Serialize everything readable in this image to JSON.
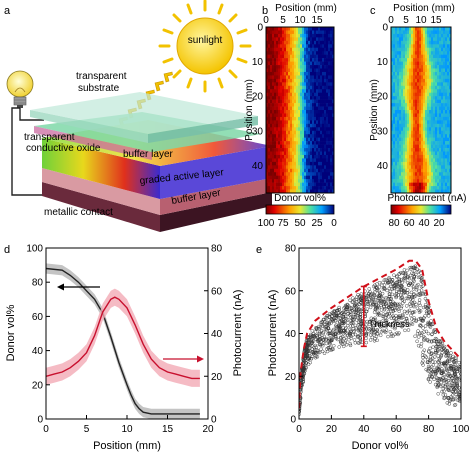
{
  "panels": {
    "a": {
      "letter": "a",
      "labels": {
        "sunlight": "sunlight",
        "substrate": "transparent substrate",
        "tco": "transparent conductive oxide",
        "buffer_top": "buffer layer",
        "active": "graded active layer",
        "buffer_bottom": "buffer layer",
        "contact": "metallic contact"
      }
    },
    "b": {
      "letter": "b",
      "xlabel": "Position (mm)",
      "ylabel": "Position (mm)",
      "xticks": [
        "0",
        "5",
        "10",
        "15"
      ],
      "yticks": [
        "0",
        "10",
        "20",
        "30",
        "40"
      ],
      "colorbar_label": "Donor vol%",
      "colorbar_ticks": [
        "100",
        "75",
        "50",
        "25",
        "0"
      ]
    },
    "c": {
      "letter": "c",
      "xlabel": "Position (mm)",
      "ylabel": "Position (mm)",
      "xticks": [
        "0",
        "5",
        "10",
        "15"
      ],
      "yticks": [
        "0",
        "10",
        "20",
        "30",
        "40"
      ],
      "colorbar_label": "Photocurrent (nA)",
      "colorbar_ticks": [
        "80",
        "60",
        "40",
        "20"
      ]
    },
    "d": {
      "letter": "d"
    },
    "e": {
      "letter": "e",
      "annotation": "Thickness"
    }
  },
  "colors": {
    "donor": "#222222",
    "donor_band": "#b5b5b5",
    "photocurrent": "#c8102e",
    "photocurrent_band": "#f2aab5",
    "scatter": "#333333",
    "envelope": "#d0101a"
  },
  "chart_data": [
    {
      "type": "heatmap",
      "panel": "b",
      "title": "",
      "xlabel": "Position (mm)",
      "ylabel": "Position (mm)",
      "xlim": [
        0,
        20
      ],
      "ylim": [
        48,
        0
      ],
      "colorbar": {
        "label": "Donor vol%",
        "range": [
          100,
          0
        ],
        "ticks": [
          100,
          75,
          50,
          25,
          0
        ]
      },
      "columns_x": [
        0,
        2,
        4,
        6,
        8,
        10,
        11,
        12,
        14,
        16,
        18,
        20
      ],
      "column_values": [
        100,
        98,
        92,
        80,
        60,
        40,
        25,
        8,
        2,
        0,
        0,
        0
      ]
    },
    {
      "type": "heatmap",
      "panel": "c",
      "title": "",
      "xlabel": "Position (mm)",
      "ylabel": "Position (mm)",
      "xlim": [
        0,
        20
      ],
      "ylim": [
        48,
        0
      ],
      "colorbar": {
        "label": "Photocurrent (nA)",
        "range": [
          80,
          0
        ],
        "ticks": [
          80,
          60,
          40,
          20
        ]
      },
      "rows_y": [
        0,
        5,
        10,
        15,
        20,
        25,
        30,
        35,
        40,
        45,
        48
      ],
      "peak_x": [
        9,
        9,
        9,
        9,
        8.5,
        8.5,
        8.5,
        8.5,
        9,
        9,
        9
      ],
      "peak_width": [
        2,
        2.5,
        3.5,
        4.5,
        4,
        2.5,
        2.5,
        3.5,
        4.5,
        4.5,
        3
      ],
      "baseline_nA": 22,
      "peak_nA": 68
    },
    {
      "type": "line",
      "panel": "d",
      "title": "",
      "xlabel": "Position (mm)",
      "ylabel": "Donor vol%",
      "y2label": "Photocurrent (nA)",
      "xlim": [
        0,
        20
      ],
      "ylim": [
        0,
        100
      ],
      "y2lim": [
        0,
        80
      ],
      "xticks": [
        0,
        5,
        10,
        15,
        20
      ],
      "yticks": [
        0,
        20,
        40,
        60,
        80,
        100
      ],
      "y2ticks": [
        0,
        20,
        40,
        60,
        80
      ],
      "series": [
        {
          "axis": "left",
          "x": [
            0,
            2,
            3,
            4,
            5,
            6,
            7,
            8,
            9,
            10,
            10.5,
            11,
            11.5,
            12,
            13,
            14,
            15,
            16,
            17,
            18,
            19
          ],
          "y": [
            88,
            87,
            84,
            80,
            75,
            70,
            62,
            48,
            33,
            20,
            14,
            9,
            6,
            4,
            3,
            3,
            3,
            3,
            3,
            3,
            3
          ],
          "band": 3
        },
        {
          "axis": "right",
          "x": [
            0,
            1,
            2,
            3,
            4,
            5,
            6,
            7,
            8,
            8.5,
            9,
            10,
            11,
            12,
            13,
            14,
            15,
            16,
            17,
            18,
            19
          ],
          "y": [
            20,
            21,
            22,
            24,
            27,
            31,
            39,
            50,
            56,
            57,
            56,
            52,
            44,
            35,
            28,
            24,
            22,
            21,
            20,
            19,
            19
          ],
          "band": 4
        }
      ]
    },
    {
      "type": "scatter",
      "panel": "e",
      "title": "",
      "xlabel": "Donor vol%",
      "ylabel": "Photocurrent (nA)",
      "xlim": [
        0,
        100
      ],
      "ylim": [
        0,
        80
      ],
      "xticks": [
        0,
        20,
        40,
        60,
        80,
        100
      ],
      "yticks": [
        0,
        20,
        40,
        60,
        80
      ],
      "envelope": {
        "x": [
          0,
          1,
          3,
          5,
          10,
          20,
          30,
          40,
          50,
          60,
          68,
          72,
          76,
          80,
          85,
          90,
          95,
          100
        ],
        "y": [
          5,
          22,
          33,
          40,
          46,
          52,
          57,
          62,
          66,
          70,
          74,
          74,
          70,
          55,
          42,
          36,
          32,
          28
        ]
      },
      "lower_edge": {
        "x": [
          0,
          2,
          5,
          10,
          20,
          30,
          40,
          50,
          60,
          70,
          72,
          76,
          80,
          85,
          90,
          95,
          100
        ],
        "y": [
          2,
          15,
          25,
          28,
          31,
          33,
          35,
          37,
          39,
          42,
          38,
          26,
          18,
          12,
          8,
          6,
          6
        ]
      },
      "thickness_marker": {
        "x": 40,
        "y_low": 34,
        "y_high": 62
      }
    }
  ]
}
